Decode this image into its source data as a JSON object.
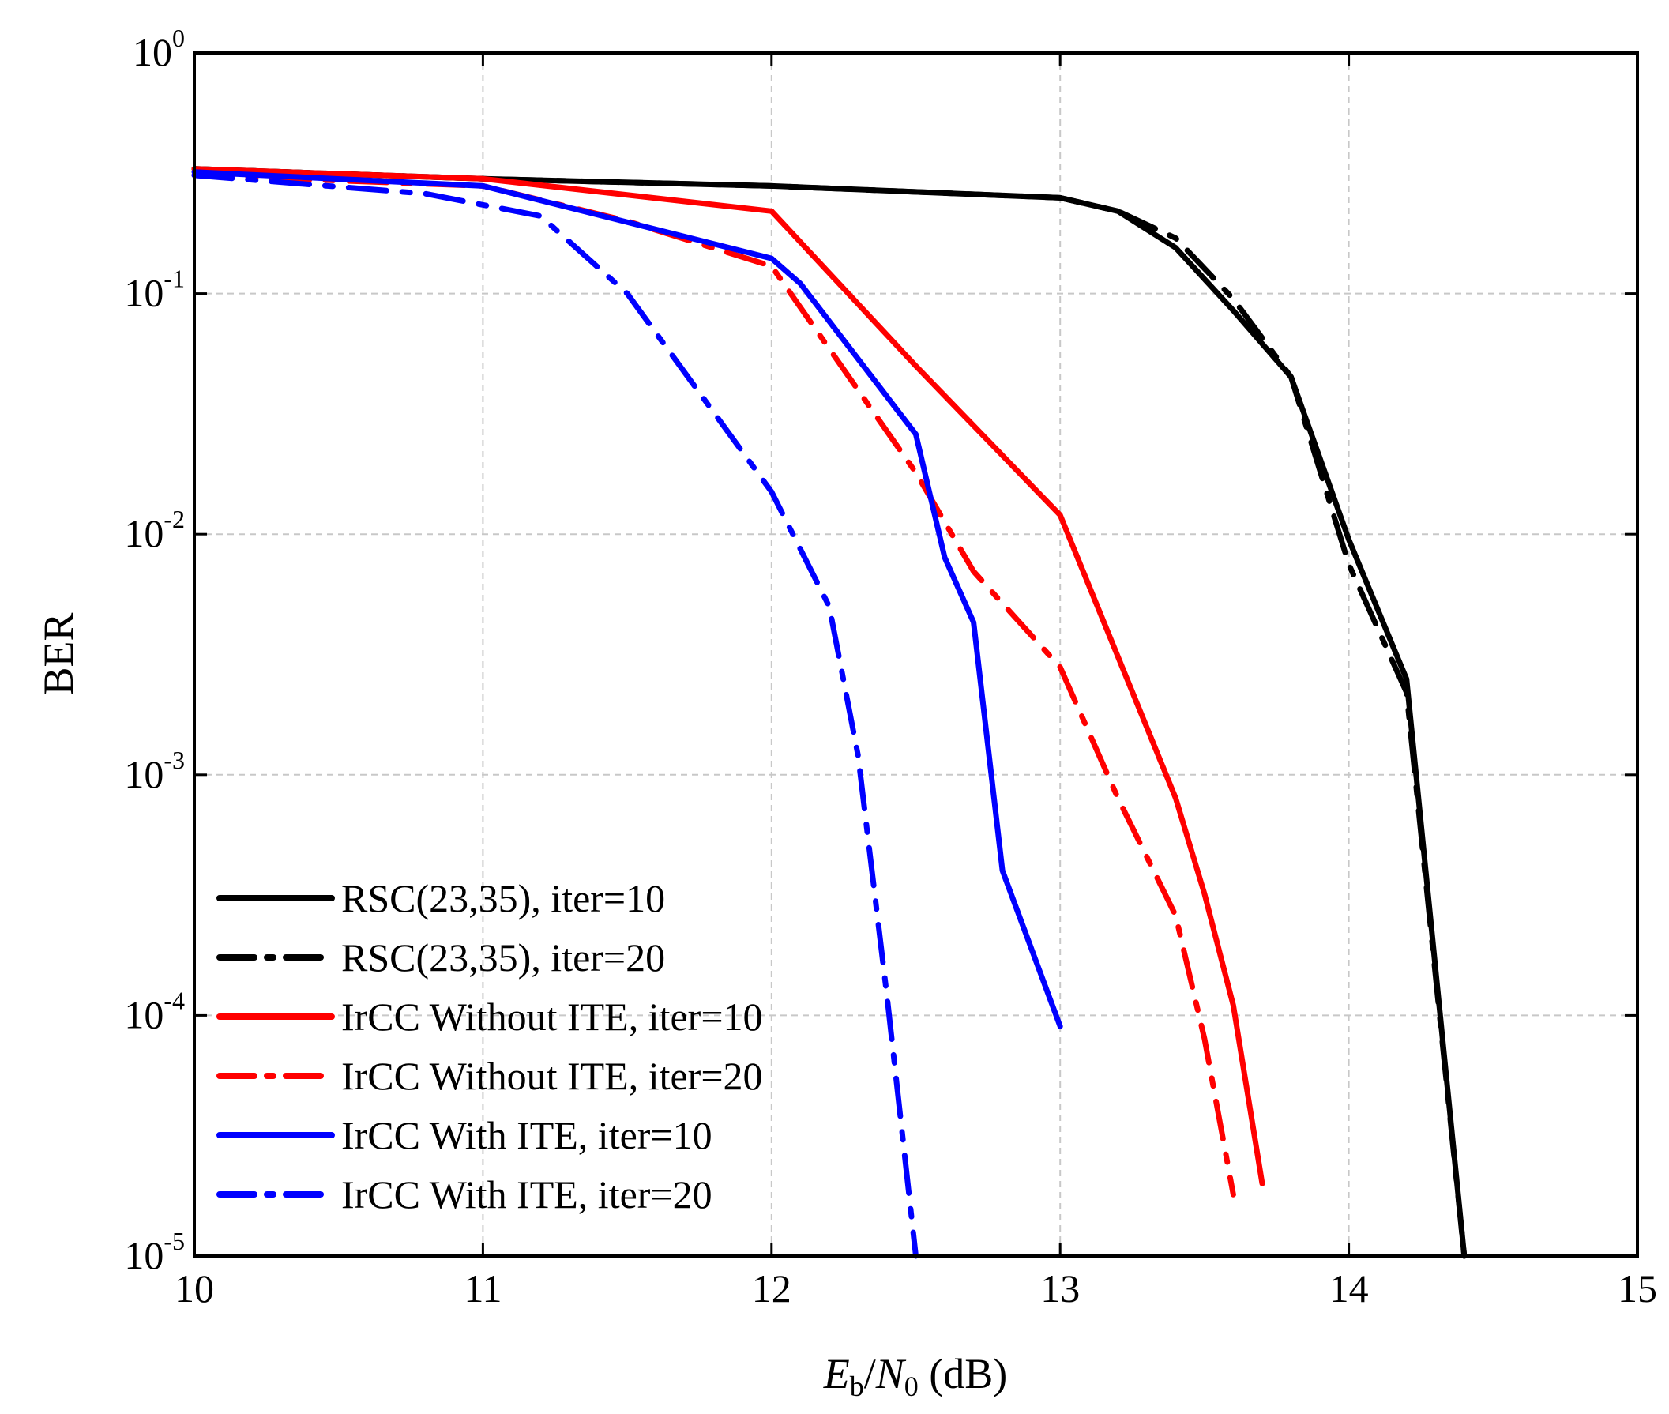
{
  "chart_data": {
    "type": "line",
    "title": "",
    "xlabel": {
      "main": "E",
      "sub1": "b",
      "sep": "/",
      "main2": "N",
      "sub2": "0",
      "unit": " (dB)"
    },
    "ylabel": "BER",
    "xlim": [
      10,
      15
    ],
    "ylim": [
      1e-05,
      1
    ],
    "yscale": "log",
    "grid": true,
    "legend_position": "bottom-left",
    "x_ticks": [
      {
        "value": 10,
        "label": "10"
      },
      {
        "value": 11,
        "label": "11"
      },
      {
        "value": 12,
        "label": "12"
      },
      {
        "value": 13,
        "label": "13"
      },
      {
        "value": 14,
        "label": "14"
      },
      {
        "value": 15,
        "label": "15"
      }
    ],
    "y_ticks": [
      {
        "value": 1,
        "base": "10",
        "exp": "0"
      },
      {
        "value": 0.1,
        "base": "10",
        "exp": "-1"
      },
      {
        "value": 0.01,
        "base": "10",
        "exp": "-2"
      },
      {
        "value": 0.001,
        "base": "10",
        "exp": "-3"
      },
      {
        "value": 0.0001,
        "base": "10",
        "exp": "-4"
      },
      {
        "value": 1e-05,
        "base": "10",
        "exp": "-5"
      }
    ],
    "series": [
      {
        "name": "RSC(23,35), iter=10",
        "color": "#000000",
        "style": "solid",
        "x": [
          10,
          11,
          12,
          13,
          13.2,
          13.4,
          13.6,
          13.8,
          14.0,
          14.2,
          14.4
        ],
        "y": [
          0.33,
          0.3,
          0.28,
          0.25,
          0.22,
          0.155,
          0.085,
          0.045,
          0.0095,
          0.0025,
          1e-05
        ]
      },
      {
        "name": "RSC(23,35), iter=20",
        "color": "#000000",
        "style": "dashdot",
        "x": [
          10,
          11,
          12,
          13,
          13.2,
          13.4,
          13.6,
          13.8,
          14.0,
          14.2,
          14.4
        ],
        "y": [
          0.33,
          0.3,
          0.28,
          0.25,
          0.22,
          0.17,
          0.095,
          0.045,
          0.0075,
          0.0022,
          1e-05
        ]
      },
      {
        "name": "IrCC Without ITE, iter=10",
        "color": "#ff0000",
        "style": "solid",
        "x": [
          10,
          11,
          12,
          12.5,
          13,
          13.4,
          13.5,
          13.6,
          13.7
        ],
        "y": [
          0.33,
          0.3,
          0.22,
          0.05,
          0.012,
          0.0008,
          0.00032,
          0.00011,
          2e-05
        ]
      },
      {
        "name": "IrCC Without ITE, iter=20",
        "color": "#ff0000",
        "style": "dashdot",
        "x": [
          10,
          11,
          11.5,
          12,
          12.5,
          12.7,
          13,
          13.2,
          13.4,
          13.5,
          13.6
        ],
        "y": [
          0.31,
          0.28,
          0.2,
          0.13,
          0.018,
          0.007,
          0.0028,
          0.0008,
          0.00026,
          8e-05,
          1.8e-05
        ]
      },
      {
        "name": "IrCC With ITE, iter=10",
        "color": "#0000ff",
        "style": "solid",
        "x": [
          10,
          11,
          12,
          12.1,
          12.5,
          12.6,
          12.7,
          12.8,
          13
        ],
        "y": [
          0.32,
          0.28,
          0.14,
          0.11,
          0.026,
          0.008,
          0.0043,
          0.0004,
          9e-05
        ]
      },
      {
        "name": "IrCC With ITE, iter=20",
        "color": "#0000ff",
        "style": "dashdot",
        "x": [
          10,
          10.8,
          11.2,
          11.5,
          12,
          12.2,
          12.3,
          12.4,
          12.5
        ],
        "y": [
          0.31,
          0.26,
          0.21,
          0.1,
          0.015,
          0.005,
          0.0012,
          0.00012,
          1e-05
        ]
      }
    ]
  }
}
